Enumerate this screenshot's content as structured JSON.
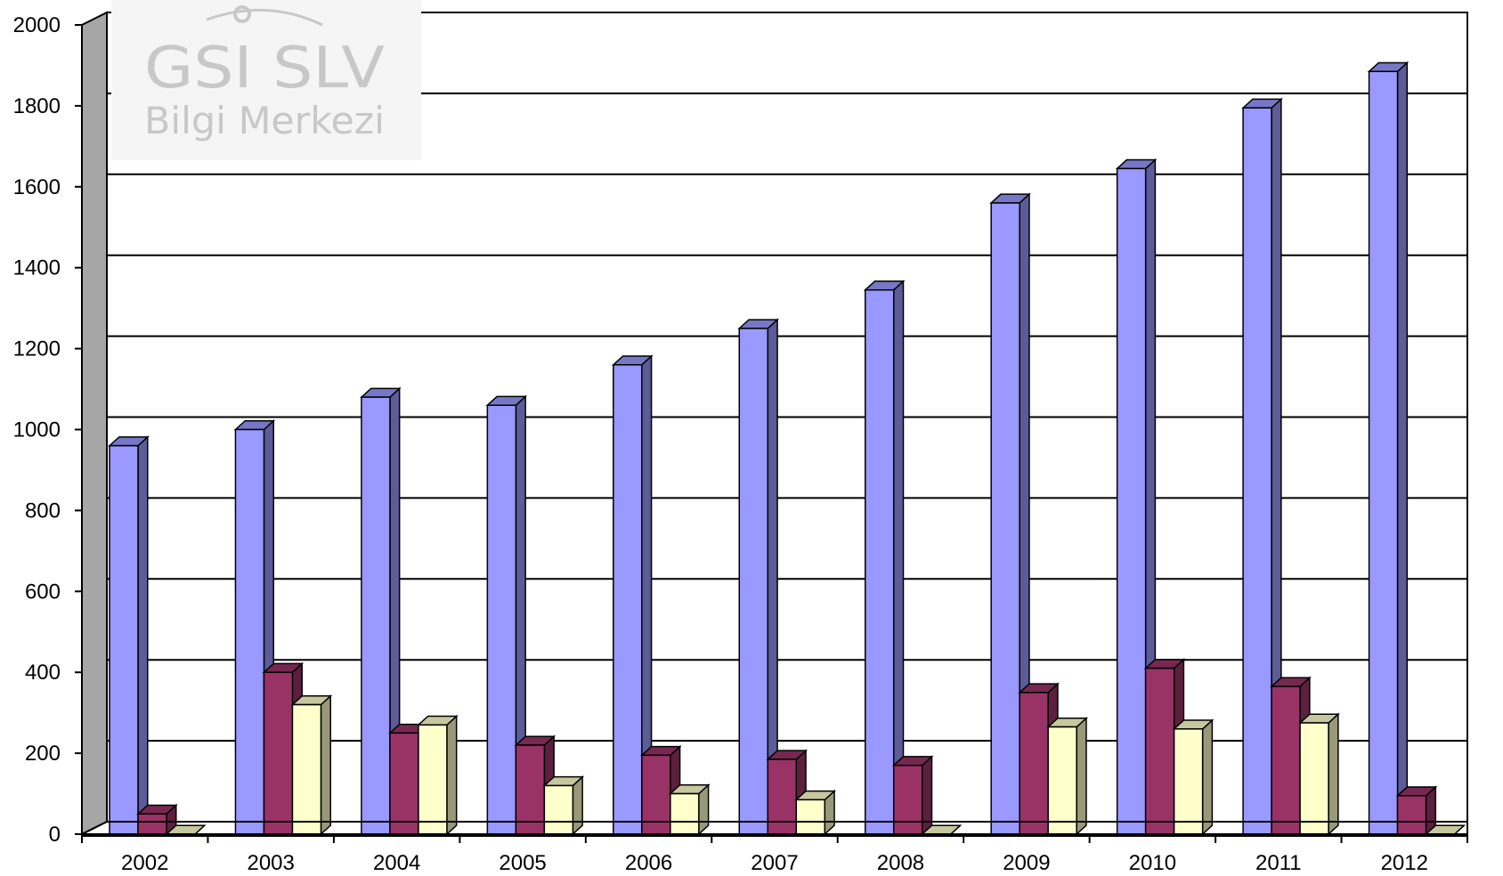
{
  "watermark": {
    "line1": "GSI SLV",
    "line2": "Bilgi Merkezi"
  },
  "chart_data": {
    "type": "bar",
    "style": "3d-clustered-column",
    "title": "",
    "xlabel": "",
    "ylabel": "",
    "categories": [
      "2002",
      "2003",
      "2004",
      "2005",
      "2006",
      "2007",
      "2008",
      "2009",
      "2010",
      "2011",
      "2012"
    ],
    "series": [
      {
        "color": "#9999ff",
        "values": [
          960,
          1000,
          1080,
          1060,
          1160,
          1250,
          1345,
          1560,
          1645,
          1795,
          1885
        ]
      },
      {
        "color": "#993366",
        "values": [
          50,
          400,
          250,
          220,
          195,
          185,
          170,
          350,
          410,
          365,
          95
        ]
      },
      {
        "color": "#ffffcc",
        "values": [
          0,
          320,
          270,
          120,
          100,
          85,
          0,
          265,
          260,
          275,
          0
        ]
      }
    ],
    "ylim": [
      0,
      2000
    ],
    "yticks": [
      0,
      200,
      400,
      600,
      800,
      1000,
      1200,
      1400,
      1600,
      1800,
      2000
    ],
    "grid": true,
    "legend": "none"
  }
}
